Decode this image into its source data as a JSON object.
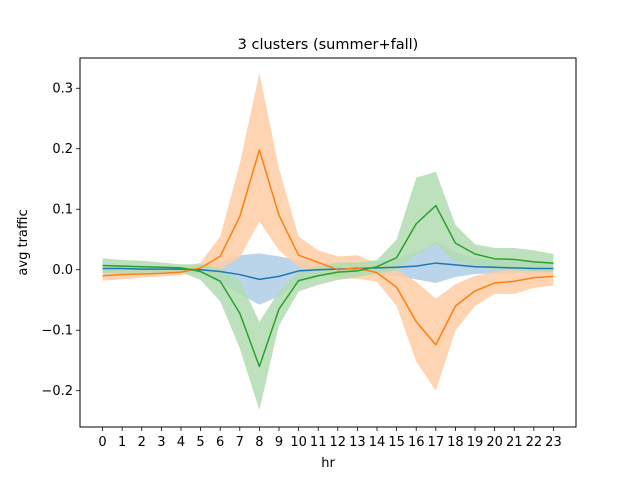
{
  "chart_data": {
    "type": "line",
    "title": "3 clusters (summer+fall)",
    "xlabel": "hr",
    "ylabel": "avg traffic",
    "x": [
      0,
      1,
      2,
      3,
      4,
      5,
      6,
      7,
      8,
      9,
      10,
      11,
      12,
      13,
      14,
      15,
      16,
      17,
      18,
      19,
      20,
      21,
      22,
      23
    ],
    "xlim": [
      -1.15,
      24.15
    ],
    "ylim": [
      -0.26,
      0.35
    ],
    "yticks": [
      -0.2,
      -0.1,
      0.0,
      0.1,
      0.2,
      0.3
    ],
    "ytick_labels": [
      "−0.2",
      "−0.1",
      "0.0",
      "0.1",
      "0.2",
      "0.3"
    ],
    "grid": false,
    "legend": "none",
    "series": [
      {
        "color": "#1f77b4",
        "band_color": "#aecde6",
        "values": [
          0.002,
          0.002,
          0.001,
          0.001,
          0.001,
          0.0,
          -0.003,
          -0.008,
          -0.016,
          -0.011,
          -0.002,
          0.0,
          0.001,
          0.002,
          0.003,
          0.004,
          0.006,
          0.011,
          0.008,
          0.005,
          0.004,
          0.003,
          0.002,
          0.002
        ],
        "lower": [
          -0.006,
          -0.005,
          -0.005,
          -0.004,
          -0.004,
          -0.006,
          -0.022,
          -0.04,
          -0.058,
          -0.044,
          -0.021,
          -0.012,
          -0.009,
          -0.008,
          -0.009,
          -0.011,
          -0.016,
          -0.022,
          -0.012,
          -0.007,
          -0.006,
          -0.006,
          -0.007,
          -0.007
        ],
        "upper": [
          0.008,
          0.008,
          0.007,
          0.006,
          0.006,
          0.007,
          0.013,
          0.024,
          0.027,
          0.022,
          0.016,
          0.012,
          0.011,
          0.011,
          0.013,
          0.019,
          0.028,
          0.046,
          0.029,
          0.019,
          0.016,
          0.014,
          0.012,
          0.011
        ]
      },
      {
        "color": "#ff7f0e",
        "band_color": "#ffcda6",
        "values": [
          -0.01,
          -0.008,
          -0.007,
          -0.006,
          -0.004,
          0.003,
          0.022,
          0.088,
          0.198,
          0.09,
          0.024,
          0.012,
          0.0,
          0.003,
          -0.005,
          -0.029,
          -0.086,
          -0.124,
          -0.06,
          -0.035,
          -0.022,
          -0.019,
          -0.013,
          -0.011
        ],
        "lower": [
          -0.018,
          -0.016,
          -0.013,
          -0.011,
          -0.009,
          -0.004,
          0.001,
          0.02,
          0.08,
          0.032,
          0.004,
          -0.004,
          -0.015,
          -0.015,
          -0.02,
          -0.06,
          -0.152,
          -0.2,
          -0.1,
          -0.06,
          -0.04,
          -0.04,
          -0.03,
          -0.026
        ],
        "upper": [
          -0.002,
          0.0,
          0.0,
          0.001,
          0.003,
          0.012,
          0.055,
          0.175,
          0.325,
          0.167,
          0.055,
          0.032,
          0.022,
          0.024,
          0.01,
          0.0,
          -0.02,
          -0.048,
          -0.024,
          -0.01,
          -0.004,
          0.002,
          0.005,
          0.005
        ]
      },
      {
        "color": "#2ca02c",
        "band_color": "#b0dcb0",
        "values": [
          0.007,
          0.006,
          0.005,
          0.004,
          0.003,
          -0.003,
          -0.019,
          -0.072,
          -0.16,
          -0.065,
          -0.018,
          -0.01,
          -0.004,
          -0.002,
          0.005,
          0.02,
          0.076,
          0.106,
          0.044,
          0.026,
          0.018,
          0.017,
          0.013,
          0.011
        ],
        "lower": [
          -0.006,
          -0.006,
          -0.005,
          -0.005,
          -0.004,
          -0.017,
          -0.052,
          -0.13,
          -0.232,
          -0.092,
          -0.036,
          -0.025,
          -0.017,
          -0.012,
          -0.006,
          -0.001,
          0.025,
          0.043,
          0.013,
          0.007,
          0.0,
          -0.001,
          -0.003,
          -0.004
        ],
        "upper": [
          0.019,
          0.016,
          0.015,
          0.012,
          0.009,
          0.009,
          0.001,
          -0.018,
          -0.086,
          -0.036,
          -0.002,
          0.005,
          0.012,
          0.012,
          0.016,
          0.05,
          0.152,
          0.162,
          0.074,
          0.042,
          0.036,
          0.036,
          0.032,
          0.026
        ]
      }
    ]
  }
}
